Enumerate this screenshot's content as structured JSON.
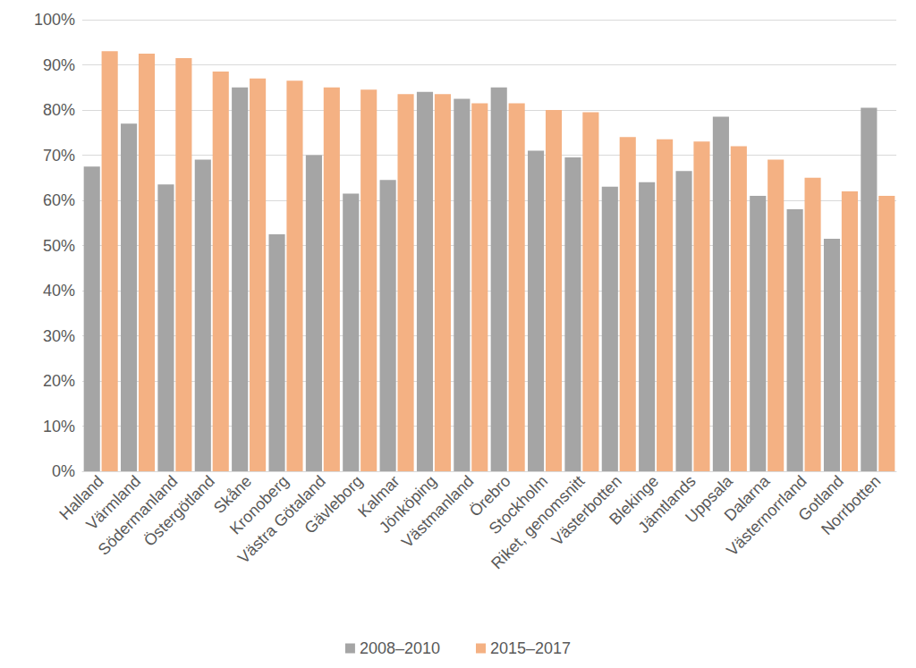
{
  "chart_data": {
    "type": "bar",
    "categories": [
      "Halland",
      "Värmland",
      "Södermanland",
      "Östergötland",
      "Skåne",
      "Kronoberg",
      "Västra Götaland",
      "Gävleborg",
      "Kalmar",
      "Jönköping",
      "Västmanland",
      "Örebro",
      "Stockholm",
      "Riket, genomsnitt",
      "Västerbotten",
      "Blekinge",
      "Jämtlands",
      "Uppsala",
      "Dalarna",
      "Västernorrland",
      "Gotland",
      "Norrbotten"
    ],
    "series": [
      {
        "name": "2008–2010",
        "color": "#a5a5a5",
        "values": [
          67.5,
          77,
          63.5,
          69,
          85,
          52.5,
          70,
          61.5,
          64.5,
          84,
          82.5,
          85,
          71,
          69.5,
          63,
          64,
          66.5,
          78.5,
          61,
          58,
          51.5,
          80.5
        ]
      },
      {
        "name": "2015–2017",
        "color": "#f4b183",
        "values": [
          93,
          92.5,
          91.5,
          88.5,
          87,
          86.5,
          85,
          84.5,
          83.5,
          83.5,
          81.5,
          81.5,
          80,
          79.5,
          74,
          73.5,
          73,
          72,
          69,
          65,
          62,
          61
        ]
      }
    ],
    "ylim": [
      0,
      100
    ],
    "yticks": [
      {
        "value": 0,
        "label": "0%"
      },
      {
        "value": 10,
        "label": "10%"
      },
      {
        "value": 20,
        "label": "20%"
      },
      {
        "value": 30,
        "label": "30%"
      },
      {
        "value": 40,
        "label": "40%"
      },
      {
        "value": 50,
        "label": "50%"
      },
      {
        "value": 60,
        "label": "60%"
      },
      {
        "value": 70,
        "label": "70%"
      },
      {
        "value": 80,
        "label": "80%"
      },
      {
        "value": 90,
        "label": "90%"
      },
      {
        "value": 100,
        "label": "100%"
      }
    ],
    "grid": true,
    "legend": "bottom"
  }
}
